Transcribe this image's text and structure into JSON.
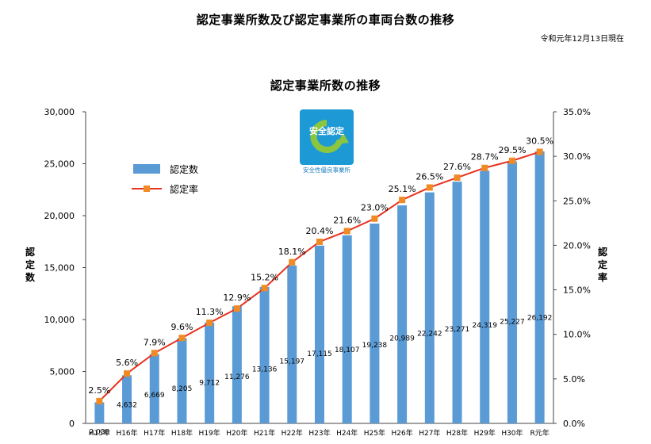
{
  "document": {
    "title": "認定事業所数及び認定事業所の車両台数の推移",
    "as_of": "令和元年12月13日現在"
  },
  "logo": {
    "top_text": "安全認定",
    "caption": "安全性優良事業所",
    "colors": {
      "background": "#1d9ad6",
      "arrow": "#8cc63f",
      "text": "#ffffff"
    }
  },
  "colors": {
    "bar": "#5b9bd5",
    "line": "#e8321e",
    "marker": "#f08a24"
  },
  "chart_data": {
    "type": "bar",
    "title": "認定事業所数の推移",
    "categories": [
      "H15年",
      "H16年",
      "H17年",
      "H18年",
      "H19年",
      "H20年",
      "H21年",
      "H22年",
      "H23年",
      "H24年",
      "H25年",
      "H26年",
      "H27年",
      "H28年",
      "H29年",
      "H30年",
      "R元年"
    ],
    "series": [
      {
        "name": "認定数",
        "kind": "bar",
        "axis": "left",
        "values": [
          2030,
          4632,
          6669,
          8205,
          9712,
          11276,
          13136,
          15197,
          17115,
          18107,
          19238,
          20989,
          22242,
          23271,
          24319,
          25227,
          26192
        ],
        "labels": [
          "2,030",
          "4,632",
          "6,669",
          "8,205",
          "9,712",
          "11,276",
          "13,136",
          "15,197",
          "17,115",
          "18,107",
          "19,238",
          "20,989",
          "22,242",
          "23,271",
          "24,319",
          "25,227",
          "26,192"
        ]
      },
      {
        "name": "認定率",
        "kind": "line",
        "axis": "right",
        "values": [
          2.5,
          5.6,
          7.9,
          9.6,
          11.3,
          12.9,
          15.2,
          18.1,
          20.4,
          21.6,
          23.0,
          25.1,
          26.5,
          27.6,
          28.7,
          29.5,
          30.5
        ],
        "labels": [
          "2.5%",
          "5.6%",
          "7.9%",
          "9.6%",
          "11.3%",
          "12.9%",
          "15.2%",
          "18.1%",
          "20.4%",
          "21.6%",
          "23.0%",
          "25.1%",
          "26.5%",
          "27.6%",
          "28.7%",
          "29.5%",
          "30.5%"
        ]
      }
    ],
    "ylabel": "認定数",
    "y2label": "認定率",
    "ylim": [
      0,
      30000
    ],
    "y2lim": [
      0,
      35
    ],
    "yticks": [
      "30,000",
      "25,000",
      "20,000",
      "15,000",
      "10,000",
      "5,000",
      "0"
    ],
    "y2ticks": [
      "35.0%",
      "30.0%",
      "25.0%",
      "20.0%",
      "15.0%",
      "10.0%",
      "5.0%",
      "0.0%"
    ],
    "legend": {
      "placement": "upper-left",
      "items": [
        "認定数",
        "認定率"
      ]
    },
    "grid": false
  }
}
